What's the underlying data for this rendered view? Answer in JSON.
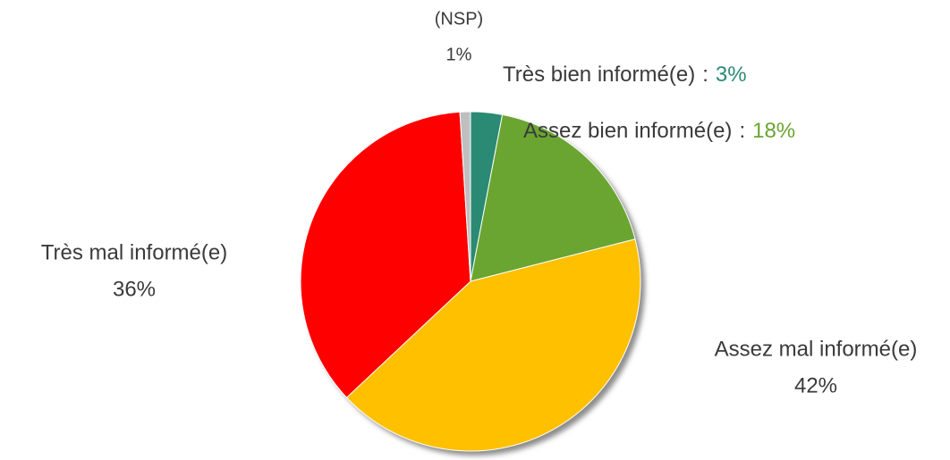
{
  "chart_data": {
    "type": "pie",
    "categories": [
      "Très bien informé(e)",
      "Assez bien informé(e)",
      "Assez mal informé(e)",
      "Très mal informé(e)",
      "(NSP)"
    ],
    "values": [
      3,
      18,
      42,
      36,
      1
    ],
    "value_labels": [
      "3%",
      "18%",
      "42%",
      "36%",
      "1%"
    ],
    "colors": [
      "#2a8a73",
      "#6aa532",
      "#ffc000",
      "#ff0000",
      "#bfbfbf"
    ],
    "separator": ":",
    "start_angle": 0,
    "direction": "clockwise"
  }
}
